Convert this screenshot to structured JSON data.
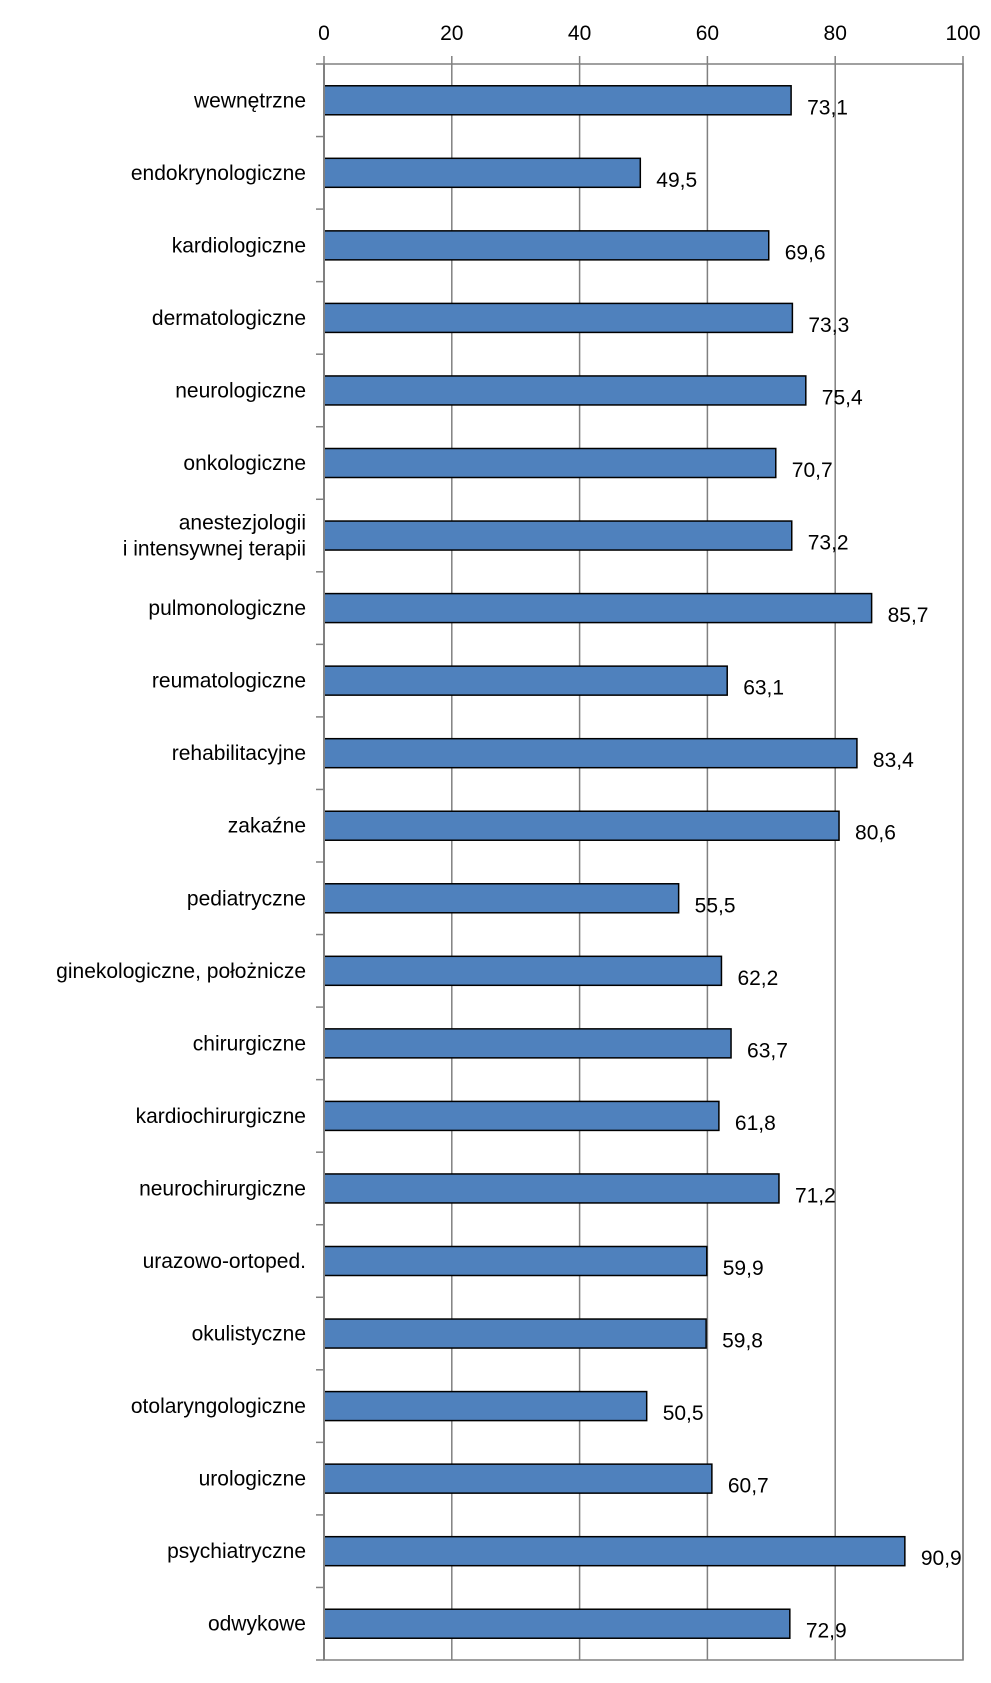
{
  "chart_data": {
    "type": "bar",
    "orientation": "horizontal",
    "categories": [
      "wewnętrzne",
      "endokrynologiczne",
      "kardiologiczne",
      "dermatologiczne",
      "neurologiczne",
      "onkologiczne",
      "anestezjologii\ni intensywnej terapii",
      "pulmonologiczne",
      "reumatologiczne",
      "rehabilitacyjne",
      "zakaźne",
      "pediatryczne",
      "ginekologiczne, położnicze",
      "chirurgiczne",
      "kardiochirurgiczne",
      "neurochirurgiczne",
      "urazowo-ortoped.",
      "okulistyczne",
      "otolaryngologiczne",
      "urologiczne",
      "psychiatryczne",
      "odwykowe"
    ],
    "values": [
      73.1,
      49.5,
      69.6,
      73.3,
      75.4,
      70.7,
      73.2,
      85.7,
      63.1,
      83.4,
      80.6,
      55.5,
      62.2,
      63.7,
      61.8,
      71.2,
      59.9,
      59.8,
      50.5,
      60.7,
      90.9,
      72.9
    ],
    "data_labels": [
      "73,1",
      "49,5",
      "69,6",
      "73,3",
      "75,4",
      "70,7",
      "73,2",
      "85,7",
      "63,1",
      "83,4",
      "80,6",
      "55,5",
      "62,2",
      "63,7",
      "61,8",
      "71,2",
      "59,9",
      "59,8",
      "50,5",
      "60,7",
      "90,9",
      "72,9"
    ],
    "xlim": [
      0,
      100
    ],
    "xticks": [
      0,
      20,
      40,
      60,
      80,
      100
    ],
    "x_axis_position": "top",
    "grid": true,
    "bar_color": "#4f81bd",
    "bar_edge_color": "#000000",
    "legend": "none"
  }
}
